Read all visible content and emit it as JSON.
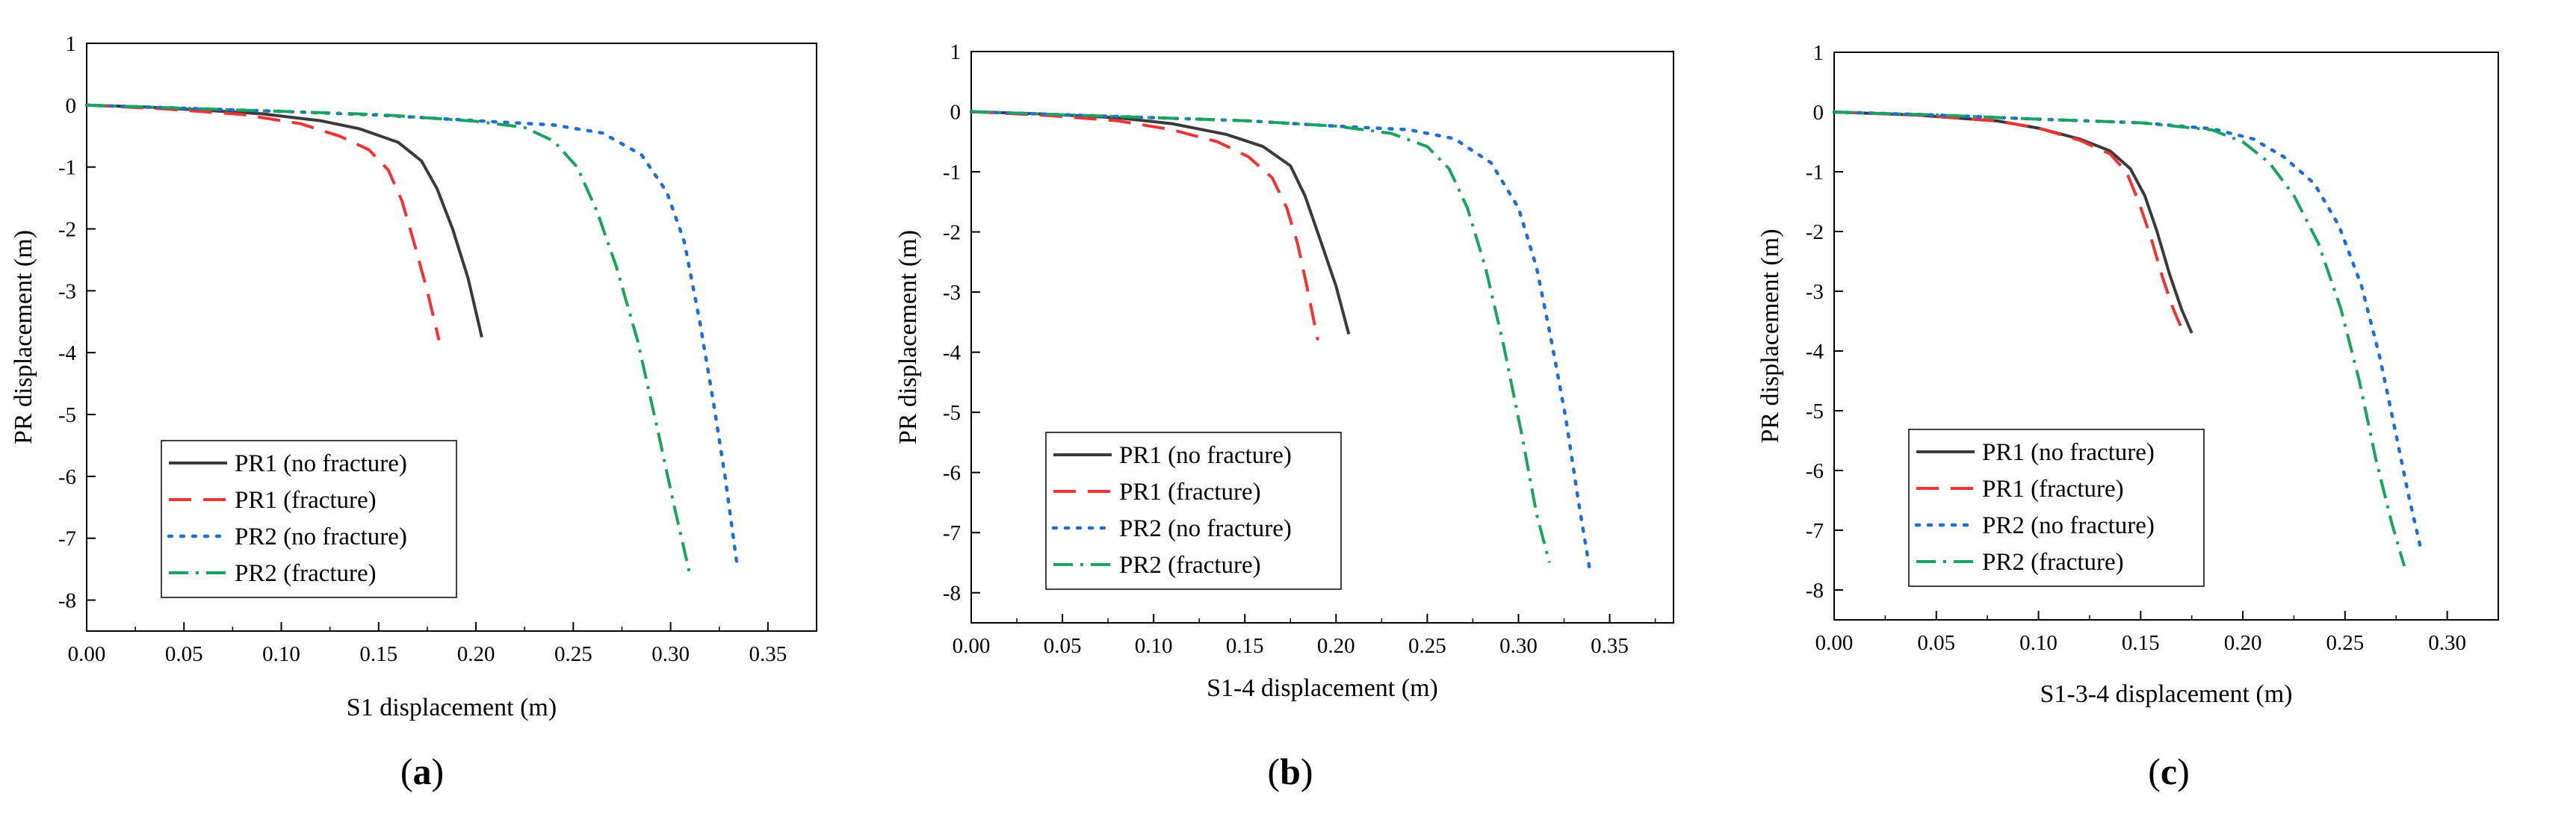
{
  "chart_data": [
    {
      "type": "line",
      "panel_label": "a",
      "xlabel": "S1 displacement (m)",
      "ylabel": "PR displacement (m)",
      "xlim": [
        0.0,
        0.375
      ],
      "ylim": [
        -8.5,
        1.0
      ],
      "xticks": [
        "0.00",
        "0.05",
        "0.10",
        "0.15",
        "0.20",
        "0.25",
        "0.30",
        "0.35"
      ],
      "yticks": [
        "1",
        "0",
        "-1",
        "-2",
        "-3",
        "-4",
        "-5",
        "-6",
        "-7",
        "-8"
      ],
      "legend_position": "bottom-left",
      "series": [
        {
          "name": "PR1 (no fracture)",
          "color": "#3a3a3a",
          "dash": "solid",
          "points": [
            [
              0,
              0
            ],
            [
              0.03,
              -0.03
            ],
            [
              0.06,
              -0.08
            ],
            [
              0.09,
              -0.14
            ],
            [
              0.12,
              -0.25
            ],
            [
              0.14,
              -0.38
            ],
            [
              0.16,
              -0.6
            ],
            [
              0.172,
              -0.9
            ],
            [
              0.18,
              -1.35
            ],
            [
              0.188,
              -2.0
            ],
            [
              0.196,
              -2.8
            ],
            [
              0.203,
              -3.75
            ]
          ]
        },
        {
          "name": "PR1 (fracture)",
          "color": "#ee3333",
          "dash": "dash",
          "points": [
            [
              0,
              0
            ],
            [
              0.04,
              -0.06
            ],
            [
              0.08,
              -0.15
            ],
            [
              0.11,
              -0.3
            ],
            [
              0.13,
              -0.5
            ],
            [
              0.145,
              -0.72
            ],
            [
              0.155,
              -1.05
            ],
            [
              0.162,
              -1.55
            ],
            [
              0.168,
              -2.2
            ],
            [
              0.175,
              -3.0
            ],
            [
              0.181,
              -3.8
            ]
          ]
        },
        {
          "name": "PR2 (no fracture)",
          "color": "#1f6fd1",
          "dash": "dot",
          "points": [
            [
              0,
              0
            ],
            [
              0.05,
              -0.05
            ],
            [
              0.1,
              -0.1
            ],
            [
              0.15,
              -0.16
            ],
            [
              0.2,
              -0.25
            ],
            [
              0.24,
              -0.32
            ],
            [
              0.265,
              -0.45
            ],
            [
              0.285,
              -0.8
            ],
            [
              0.298,
              -1.4
            ],
            [
              0.307,
              -2.2
            ],
            [
              0.315,
              -3.5
            ],
            [
              0.322,
              -4.8
            ],
            [
              0.328,
              -6.0
            ],
            [
              0.334,
              -7.4
            ]
          ]
        },
        {
          "name": "PR2 (fracture)",
          "color": "#1aa360",
          "dash": "dashdot",
          "points": [
            [
              0,
              0
            ],
            [
              0.05,
              -0.05
            ],
            [
              0.1,
              -0.1
            ],
            [
              0.15,
              -0.15
            ],
            [
              0.2,
              -0.26
            ],
            [
              0.225,
              -0.36
            ],
            [
              0.24,
              -0.58
            ],
            [
              0.252,
              -1.0
            ],
            [
              0.262,
              -1.7
            ],
            [
              0.272,
              -2.6
            ],
            [
              0.283,
              -3.8
            ],
            [
              0.293,
              -5.2
            ],
            [
              0.302,
              -6.5
            ],
            [
              0.31,
              -7.6
            ]
          ]
        }
      ]
    },
    {
      "type": "line",
      "panel_label": "b",
      "xlabel": "S1-4 displacement (m)",
      "ylabel": "PR displacement (m)",
      "xlim": [
        0.0,
        0.385
      ],
      "ylim": [
        -8.5,
        1.0
      ],
      "xticks": [
        "0.00",
        "0.05",
        "0.10",
        "0.15",
        "0.20",
        "0.25",
        "0.30",
        "0.35"
      ],
      "yticks": [
        "1",
        "0",
        "-1",
        "-2",
        "-3",
        "-4",
        "-5",
        "-6",
        "-7",
        "-8"
      ],
      "legend_position": "bottom-left",
      "series": [
        {
          "name": "PR1 (no fracture)",
          "color": "#3a3a3a",
          "dash": "solid",
          "points": [
            [
              0,
              0
            ],
            [
              0.04,
              -0.04
            ],
            [
              0.08,
              -0.1
            ],
            [
              0.11,
              -0.2
            ],
            [
              0.14,
              -0.38
            ],
            [
              0.16,
              -0.58
            ],
            [
              0.175,
              -0.9
            ],
            [
              0.183,
              -1.4
            ],
            [
              0.191,
              -2.1
            ],
            [
              0.2,
              -2.9
            ],
            [
              0.207,
              -3.7
            ]
          ]
        },
        {
          "name": "PR1 (fracture)",
          "color": "#ee3333",
          "dash": "dash",
          "points": [
            [
              0,
              0
            ],
            [
              0.04,
              -0.06
            ],
            [
              0.08,
              -0.15
            ],
            [
              0.11,
              -0.3
            ],
            [
              0.135,
              -0.5
            ],
            [
              0.152,
              -0.75
            ],
            [
              0.165,
              -1.1
            ],
            [
              0.173,
              -1.6
            ],
            [
              0.179,
              -2.2
            ],
            [
              0.184,
              -2.9
            ],
            [
              0.19,
              -3.8
            ]
          ]
        },
        {
          "name": "PR2 (no fracture)",
          "color": "#1f6fd1",
          "dash": "dot",
          "points": [
            [
              0,
              0
            ],
            [
              0.05,
              -0.05
            ],
            [
              0.1,
              -0.1
            ],
            [
              0.15,
              -0.15
            ],
            [
              0.2,
              -0.24
            ],
            [
              0.24,
              -0.3
            ],
            [
              0.265,
              -0.45
            ],
            [
              0.285,
              -0.85
            ],
            [
              0.3,
              -1.6
            ],
            [
              0.31,
              -2.6
            ],
            [
              0.318,
              -3.8
            ],
            [
              0.326,
              -5.1
            ],
            [
              0.333,
              -6.5
            ],
            [
              0.339,
              -7.6
            ]
          ]
        },
        {
          "name": "PR2 (fracture)",
          "color": "#1aa360",
          "dash": "dashdot",
          "points": [
            [
              0,
              0
            ],
            [
              0.05,
              -0.05
            ],
            [
              0.1,
              -0.1
            ],
            [
              0.15,
              -0.15
            ],
            [
              0.2,
              -0.24
            ],
            [
              0.23,
              -0.36
            ],
            [
              0.25,
              -0.58
            ],
            [
              0.262,
              -0.95
            ],
            [
              0.272,
              -1.6
            ],
            [
              0.282,
              -2.6
            ],
            [
              0.292,
              -3.9
            ],
            [
              0.302,
              -5.4
            ],
            [
              0.31,
              -6.7
            ],
            [
              0.317,
              -7.5
            ]
          ]
        }
      ]
    },
    {
      "type": "line",
      "panel_label": "c",
      "xlabel": "S1-3-4 displacement (m)",
      "ylabel": "PR displacement (m)",
      "xlim": [
        0.0,
        0.325
      ],
      "ylim": [
        -8.5,
        1.0
      ],
      "xticks": [
        "0.00",
        "0.05",
        "0.10",
        "0.15",
        "0.20",
        "0.25",
        "0.30"
      ],
      "yticks": [
        "1",
        "0",
        "-1",
        "-2",
        "-3",
        "-4",
        "-5",
        "-6",
        "-7",
        "-8"
      ],
      "legend_position": "bottom-left",
      "series": [
        {
          "name": "PR1 (no fracture)",
          "color": "#3a3a3a",
          "dash": "solid",
          "points": [
            [
              0,
              0
            ],
            [
              0.04,
              -0.05
            ],
            [
              0.08,
              -0.15
            ],
            [
              0.1,
              -0.27
            ],
            [
              0.12,
              -0.45
            ],
            [
              0.135,
              -0.65
            ],
            [
              0.145,
              -0.95
            ],
            [
              0.152,
              -1.4
            ],
            [
              0.158,
              -2.0
            ],
            [
              0.164,
              -2.7
            ],
            [
              0.17,
              -3.3
            ],
            [
              0.175,
              -3.7
            ]
          ]
        },
        {
          "name": "PR1 (fracture)",
          "color": "#ee3333",
          "dash": "dash",
          "points": [
            [
              0,
              0
            ],
            [
              0.04,
              -0.05
            ],
            [
              0.08,
              -0.15
            ],
            [
              0.1,
              -0.27
            ],
            [
              0.12,
              -0.47
            ],
            [
              0.135,
              -0.7
            ],
            [
              0.143,
              -1.0
            ],
            [
              0.149,
              -1.5
            ],
            [
              0.155,
              -2.1
            ],
            [
              0.161,
              -2.8
            ],
            [
              0.166,
              -3.3
            ],
            [
              0.171,
              -3.7
            ]
          ]
        },
        {
          "name": "PR2 (no fracture)",
          "color": "#1f6fd1",
          "dash": "dot",
          "points": [
            [
              0,
              0
            ],
            [
              0.05,
              -0.05
            ],
            [
              0.1,
              -0.12
            ],
            [
              0.15,
              -0.18
            ],
            [
              0.185,
              -0.28
            ],
            [
              0.205,
              -0.45
            ],
            [
              0.22,
              -0.75
            ],
            [
              0.235,
              -1.2
            ],
            [
              0.247,
              -1.9
            ],
            [
              0.258,
              -2.9
            ],
            [
              0.267,
              -4.1
            ],
            [
              0.275,
              -5.4
            ],
            [
              0.281,
              -6.4
            ],
            [
              0.287,
              -7.3
            ]
          ]
        },
        {
          "name": "PR2 (fracture)",
          "color": "#1aa360",
          "dash": "dashdot",
          "points": [
            [
              0,
              0
            ],
            [
              0.05,
              -0.05
            ],
            [
              0.1,
              -0.12
            ],
            [
              0.15,
              -0.18
            ],
            [
              0.185,
              -0.3
            ],
            [
              0.2,
              -0.5
            ],
            [
              0.213,
              -0.85
            ],
            [
              0.225,
              -1.4
            ],
            [
              0.237,
              -2.2
            ],
            [
              0.248,
              -3.3
            ],
            [
              0.257,
              -4.5
            ],
            [
              0.265,
              -5.8
            ],
            [
              0.273,
              -6.9
            ],
            [
              0.279,
              -7.6
            ]
          ]
        }
      ]
    }
  ]
}
